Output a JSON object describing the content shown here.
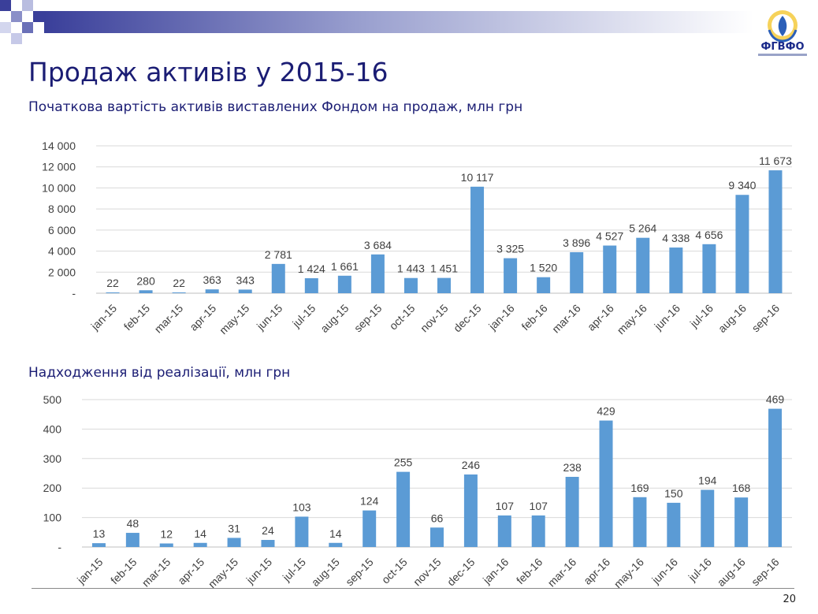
{
  "header": {
    "title": "Продаж активів у 2015-16",
    "logo_text": "ФГВФО"
  },
  "page_number": "20",
  "colors": {
    "bar": "#5b9bd5",
    "title": "#1b1d74",
    "grid": "#d9d9d9"
  },
  "chart_data": [
    {
      "type": "bar",
      "title": "Початкова вартість активів виставлених Фондом на продаж, млн грн",
      "categories": [
        "jan-15",
        "feb-15",
        "mar-15",
        "apr-15",
        "may-15",
        "jun-15",
        "jul-15",
        "aug-15",
        "sep-15",
        "oct-15",
        "nov-15",
        "dec-15",
        "jan-16",
        "feb-16",
        "mar-16",
        "apr-16",
        "may-16",
        "jun-16",
        "jul-16",
        "aug-16",
        "sep-16"
      ],
      "values": [
        22,
        280,
        22,
        363,
        343,
        2781,
        1424,
        1661,
        3684,
        1443,
        1451,
        10117,
        3325,
        1520,
        3896,
        4527,
        5264,
        4338,
        4656,
        9340,
        11673
      ],
      "data_labels": [
        "22",
        "280",
        "22",
        "363",
        "343",
        "2 781",
        "1 424",
        "1 661",
        "3 684",
        "1 443",
        "1 451",
        "10 117",
        "3 325",
        "1 520",
        "3 896",
        "4 527",
        "5 264",
        "4 338",
        "4 656",
        "9 340",
        "11 673"
      ],
      "ylim": [
        0,
        14000
      ],
      "yticks": [
        0,
        2000,
        4000,
        6000,
        8000,
        10000,
        12000,
        14000
      ],
      "ytick_labels": [
        "-",
        "2 000",
        "4 000",
        "6 000",
        "8 000",
        "10 000",
        "12 000",
        "14 000"
      ],
      "grid": true
    },
    {
      "type": "bar",
      "title": "Надходження від реалізації, млн грн",
      "categories": [
        "jan-15",
        "feb-15",
        "mar-15",
        "apr-15",
        "may-15",
        "jun-15",
        "jul-15",
        "aug-15",
        "sep-15",
        "oct-15",
        "nov-15",
        "dec-15",
        "jan-16",
        "feb-16",
        "mar-16",
        "apr-16",
        "may-16",
        "jun-16",
        "jul-16",
        "aug-16",
        "sep-16"
      ],
      "values": [
        13,
        48,
        12,
        14,
        31,
        24,
        103,
        14,
        124,
        255,
        66,
        246,
        107,
        107,
        238,
        429,
        169,
        150,
        194,
        168,
        469
      ],
      "data_labels": [
        "13",
        "48",
        "12",
        "14",
        "31",
        "24",
        "103",
        "14",
        "124",
        "255",
        "66",
        "246",
        "107",
        "107",
        "238",
        "429",
        "169",
        "150",
        "194",
        "168",
        "469"
      ],
      "ylim": [
        0,
        500
      ],
      "yticks": [
        0,
        100,
        200,
        300,
        400,
        500
      ],
      "ytick_labels": [
        "-",
        "100",
        "200",
        "300",
        "400",
        "500"
      ],
      "grid": true
    }
  ]
}
